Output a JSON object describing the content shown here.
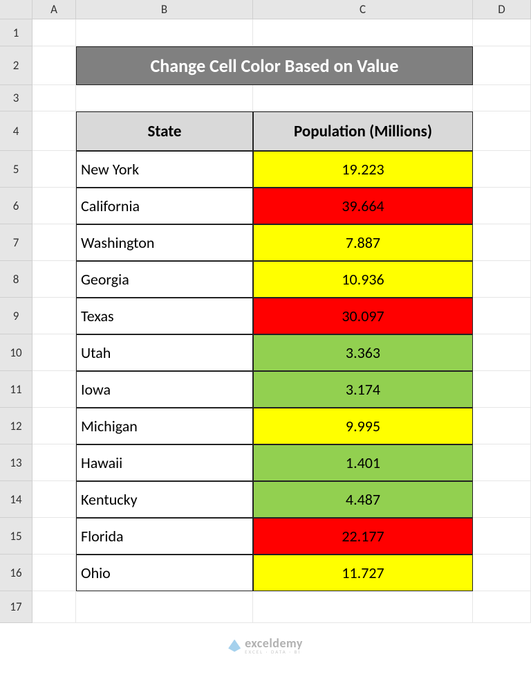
{
  "sheet": {
    "col_headers": [
      "A",
      "B",
      "C",
      "D"
    ],
    "row_heights": {
      "1": 39,
      "2": 56,
      "3": 38,
      "4": 57,
      "data": 53,
      "17": 46
    },
    "first_data_row": 5,
    "last_data_row": 16
  },
  "title": {
    "text": "Change Cell Color Based on Value",
    "bg": "#808080",
    "fg": "#ffffff",
    "fontsize": 26
  },
  "table": {
    "header_bg": "#d9d9d9",
    "border_color": "#222222",
    "columns": [
      "State",
      "Population (Millions)"
    ],
    "rows": [
      {
        "state": "New York",
        "pop": "19.223",
        "pop_bg": "#ffff00"
      },
      {
        "state": "California",
        "pop": "39.664",
        "pop_bg": "#ff0000"
      },
      {
        "state": "Washington",
        "pop": "7.887",
        "pop_bg": "#ffff00"
      },
      {
        "state": "Georgia",
        "pop": "10.936",
        "pop_bg": "#ffff00"
      },
      {
        "state": "Texas",
        "pop": "30.097",
        "pop_bg": "#ff0000"
      },
      {
        "state": "Utah",
        "pop": "3.363",
        "pop_bg": "#92d050"
      },
      {
        "state": "Iowa",
        "pop": "3.174",
        "pop_bg": "#92d050"
      },
      {
        "state": "Michigan",
        "pop": "9.995",
        "pop_bg": "#ffff00"
      },
      {
        "state": "Hawaii",
        "pop": "1.401",
        "pop_bg": "#92d050"
      },
      {
        "state": "Kentucky",
        "pop": "4.487",
        "pop_bg": "#92d050"
      },
      {
        "state": "Florida",
        "pop": "22.177",
        "pop_bg": "#ff0000"
      },
      {
        "state": "Ohio",
        "pop": "11.727",
        "pop_bg": "#ffff00"
      }
    ]
  },
  "watermark": {
    "line1": "exceldemy",
    "line2": "EXCEL · DATA · BI"
  }
}
